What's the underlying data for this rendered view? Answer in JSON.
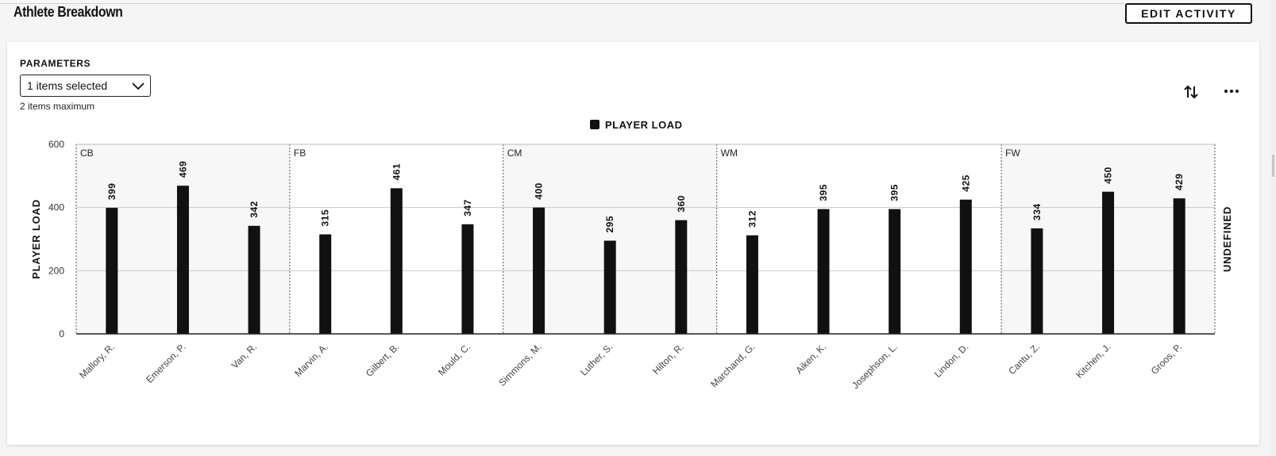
{
  "header": {
    "title": "Athlete Breakdown",
    "edit_label": "EDIT ACTIVITY"
  },
  "params": {
    "label": "PARAMETERS",
    "select_value": "1 items selected",
    "max_note": "2 items maximum"
  },
  "toolbar": {
    "sort_icon": "sort-arrows-icon",
    "more_icon": "more-horizontal-icon"
  },
  "chart_data": {
    "type": "bar",
    "legend": [
      "PLAYER LOAD"
    ],
    "legend_position": "top-center",
    "ylabel": "PLAYER LOAD",
    "y2label": "UNDEFINED",
    "ylim": [
      0,
      600
    ],
    "yticks": [
      0,
      200,
      400,
      600
    ],
    "grid": true,
    "bar_color": "#111111",
    "shaded_group_color": "#f7f7f7",
    "groups": [
      {
        "name": "CB",
        "categories": [
          "Mallory, R.",
          "Emerson, P.",
          "Van, R."
        ],
        "values": [
          399,
          469,
          342
        ],
        "shaded": true
      },
      {
        "name": "FB",
        "categories": [
          "Marvin, A.",
          "Gilbert, B.",
          "Mould, C."
        ],
        "values": [
          315,
          461,
          347
        ],
        "shaded": false
      },
      {
        "name": "CM",
        "categories": [
          "Simmons, M.",
          "Luther, S.",
          "Hilton, R."
        ],
        "values": [
          400,
          295,
          360
        ],
        "shaded": true
      },
      {
        "name": "WM",
        "categories": [
          "Marchand, G.",
          "Aiken, K.",
          "Josephson, L.",
          "Lindon, D."
        ],
        "values": [
          312,
          395,
          395,
          425
        ],
        "shaded": false
      },
      {
        "name": "FW",
        "categories": [
          "Cantu, Z.",
          "Kitchen, J.",
          "Groos, P."
        ],
        "values": [
          334,
          450,
          429
        ],
        "shaded": true
      }
    ]
  }
}
